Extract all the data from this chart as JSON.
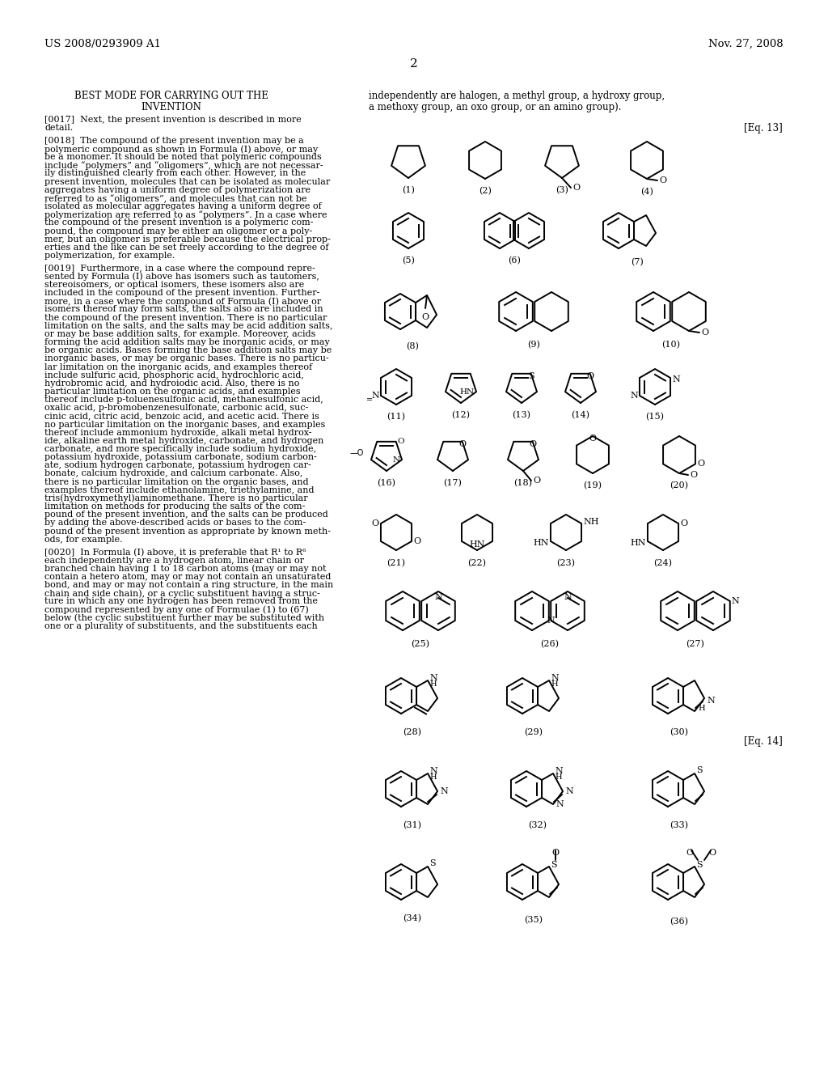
{
  "header_left": "US 2008/0293909 A1",
  "header_right": "Nov. 27, 2008",
  "page_number": "2",
  "section_title_line1": "BEST MODE FOR CARRYING OUT THE",
  "section_title_line2": "INVENTION",
  "right_text_line1": "independently are halogen, a methyl group, a hydroxy group,",
  "right_text_line2": "a methoxy group, an oxo group, or an amino group).",
  "eq13_label": "[Eq. 13]",
  "eq14_label": "[Eq. 14]",
  "bg_color": "#ffffff"
}
